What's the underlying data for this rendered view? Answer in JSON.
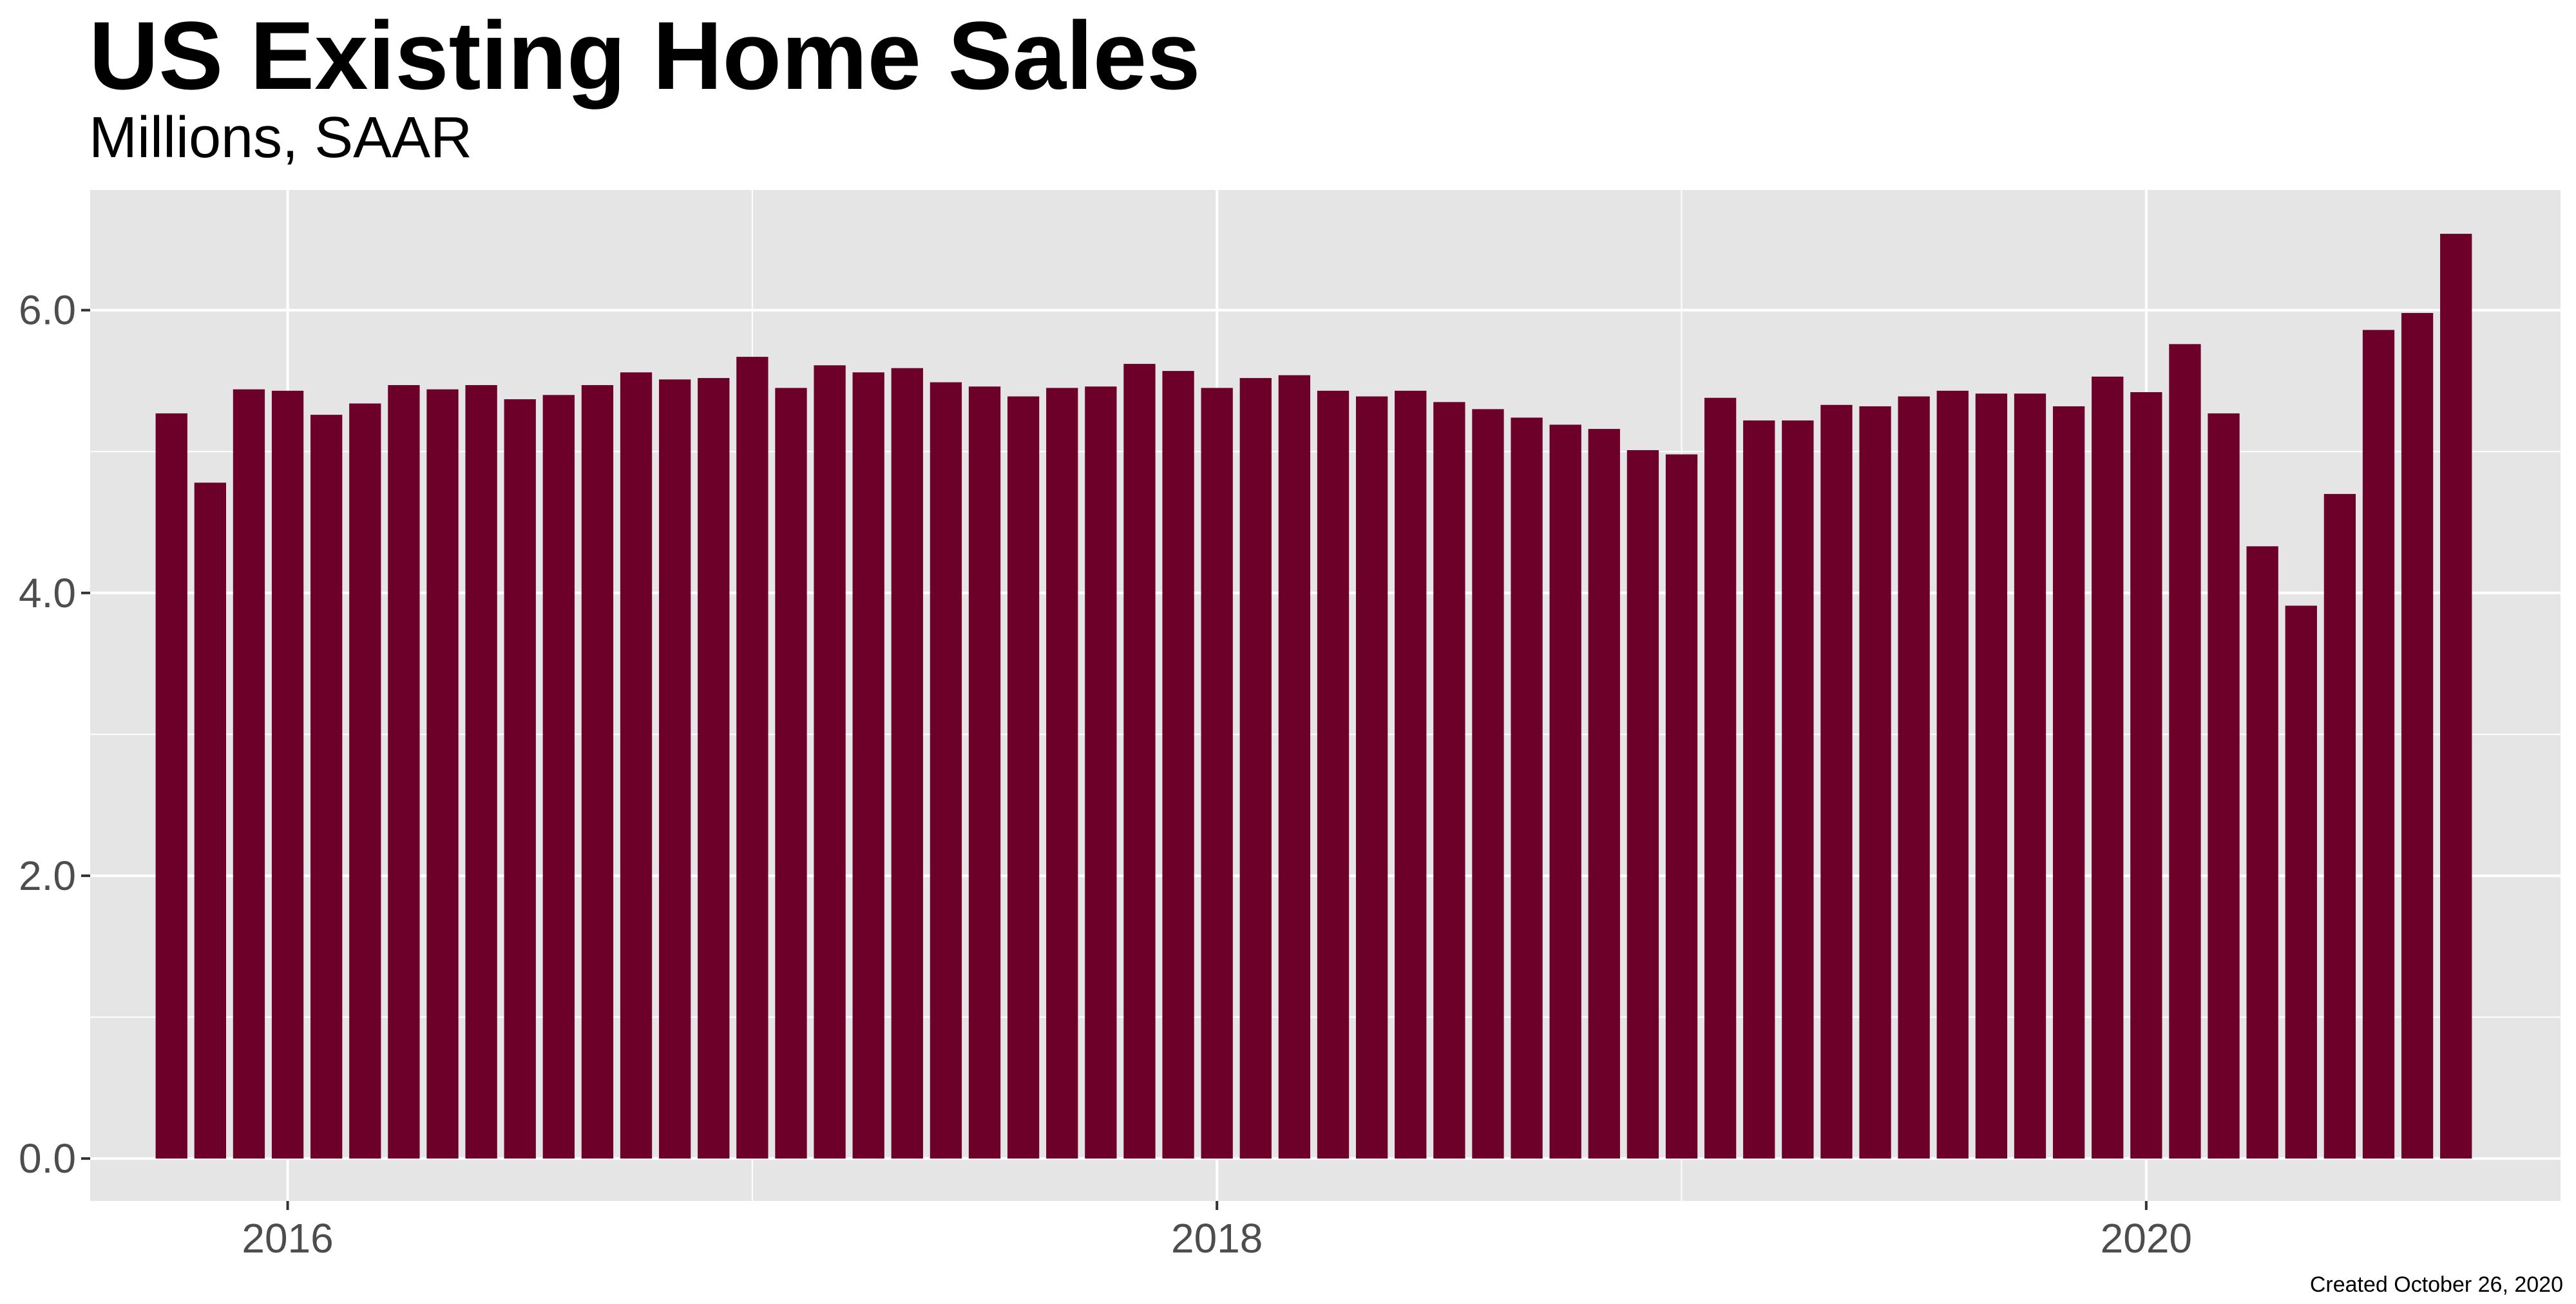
{
  "chart_data": {
    "type": "bar",
    "title": "US Existing Home Sales",
    "subtitle": "Millions, SAAR",
    "caption": "Created October 26, 2020",
    "xlabel": "",
    "ylabel": "",
    "start_month": "2015-10",
    "x_tick_labels": [
      "2016",
      "2018",
      "2020"
    ],
    "y_tick_labels": [
      "0.0",
      "2.0",
      "4.0",
      "6.0"
    ],
    "ylim": [
      -0.3,
      6.85
    ],
    "grid": true,
    "bar_color": "#6c0029",
    "panel_color": "#e5e5e5",
    "grid_color": "#ffffff",
    "series": [
      {
        "values": [
          5.27,
          4.78,
          5.44,
          5.43,
          5.26,
          5.34,
          5.47,
          5.44,
          5.47,
          5.37,
          5.4,
          5.47,
          5.56,
          5.51,
          5.52,
          5.67,
          5.45,
          5.61,
          5.56,
          5.59,
          5.49,
          5.46,
          5.39,
          5.45,
          5.46,
          5.62,
          5.57,
          5.45,
          5.52,
          5.54,
          5.43,
          5.39,
          5.43,
          5.35,
          5.3,
          5.24,
          5.19,
          5.16,
          5.01,
          4.98,
          5.38,
          5.22,
          5.22,
          5.33,
          5.32,
          5.39,
          5.43,
          5.41,
          5.41,
          5.32,
          5.53,
          5.42,
          5.76,
          5.27,
          4.33,
          3.91,
          4.7,
          5.86,
          5.98,
          6.54
        ]
      }
    ]
  }
}
